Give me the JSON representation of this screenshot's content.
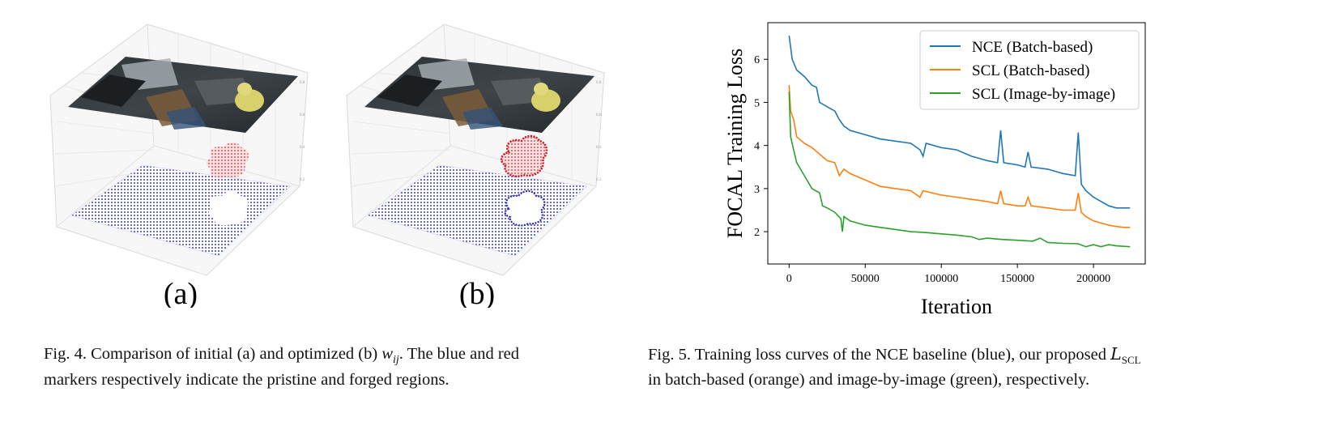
{
  "fig4": {
    "panels": [
      {
        "label": "(a)"
      },
      {
        "label": "(b)"
      }
    ],
    "caption": {
      "prefix": "Fig. 4.  Comparison of initial (a) and optimized (b) ",
      "math": "w",
      "math_sub": "ij",
      "line1_suffix": ". The blue and red",
      "line2": "markers respectively indicate the pristine and forged regions."
    },
    "colors": {
      "pristine": "#3b3bd6",
      "forged": "#e0303a"
    }
  },
  "chart_data": {
    "type": "line",
    "title": "",
    "xlabel": "Iteration",
    "ylabel": "FOCAL Training Loss",
    "xlim": [
      -14000,
      234000
    ],
    "ylim": [
      1.25,
      6.85
    ],
    "xticks": [
      0,
      50000,
      100000,
      150000,
      200000
    ],
    "xtick_labels": [
      "0",
      "50000",
      "100000",
      "150000",
      "200000"
    ],
    "yticks": [
      2,
      3,
      4,
      5,
      6
    ],
    "ytick_labels": [
      "2",
      "3",
      "4",
      "5",
      "6"
    ],
    "grid": false,
    "legend_position": "top-right",
    "series": [
      {
        "name": "NCE (Batch-based)",
        "color": "#1f77b4",
        "points": [
          [
            0,
            6.55
          ],
          [
            2000,
            6.0
          ],
          [
            5000,
            5.75
          ],
          [
            10000,
            5.6
          ],
          [
            15000,
            5.4
          ],
          [
            18000,
            5.35
          ],
          [
            20000,
            5.0
          ],
          [
            25000,
            4.9
          ],
          [
            30000,
            4.8
          ],
          [
            33000,
            4.6
          ],
          [
            36000,
            4.45
          ],
          [
            40000,
            4.35
          ],
          [
            50000,
            4.25
          ],
          [
            60000,
            4.15
          ],
          [
            70000,
            4.1
          ],
          [
            80000,
            4.05
          ],
          [
            86000,
            3.9
          ],
          [
            88000,
            3.75
          ],
          [
            90000,
            4.05
          ],
          [
            100000,
            3.95
          ],
          [
            110000,
            3.9
          ],
          [
            120000,
            3.75
          ],
          [
            125000,
            3.7
          ],
          [
            130000,
            3.65
          ],
          [
            137000,
            3.6
          ],
          [
            139000,
            4.35
          ],
          [
            141000,
            3.6
          ],
          [
            150000,
            3.55
          ],
          [
            155000,
            3.5
          ],
          [
            157000,
            3.85
          ],
          [
            159000,
            3.5
          ],
          [
            170000,
            3.45
          ],
          [
            175000,
            3.4
          ],
          [
            180000,
            3.35
          ],
          [
            188000,
            3.3
          ],
          [
            190000,
            4.3
          ],
          [
            192000,
            3.1
          ],
          [
            195000,
            2.95
          ],
          [
            200000,
            2.8
          ],
          [
            205000,
            2.7
          ],
          [
            210000,
            2.6
          ],
          [
            215000,
            2.55
          ],
          [
            220000,
            2.55
          ],
          [
            224000,
            2.55
          ]
        ]
      },
      {
        "name": "SCL (Batch-based)",
        "color": "#ff7f0e",
        "points": [
          [
            0,
            5.4
          ],
          [
            1000,
            4.8
          ],
          [
            3000,
            4.6
          ],
          [
            5000,
            4.2
          ],
          [
            10000,
            4.05
          ],
          [
            15000,
            3.95
          ],
          [
            20000,
            3.8
          ],
          [
            25000,
            3.65
          ],
          [
            30000,
            3.6
          ],
          [
            33000,
            3.3
          ],
          [
            36000,
            3.45
          ],
          [
            40000,
            3.35
          ],
          [
            50000,
            3.2
          ],
          [
            60000,
            3.05
          ],
          [
            70000,
            3.0
          ],
          [
            80000,
            2.95
          ],
          [
            86000,
            2.8
          ],
          [
            88000,
            2.95
          ],
          [
            100000,
            2.85
          ],
          [
            110000,
            2.8
          ],
          [
            120000,
            2.75
          ],
          [
            130000,
            2.7
          ],
          [
            137000,
            2.65
          ],
          [
            139000,
            2.95
          ],
          [
            141000,
            2.65
          ],
          [
            150000,
            2.6
          ],
          [
            155000,
            2.6
          ],
          [
            157000,
            2.8
          ],
          [
            159000,
            2.6
          ],
          [
            170000,
            2.55
          ],
          [
            180000,
            2.5
          ],
          [
            188000,
            2.5
          ],
          [
            190000,
            2.9
          ],
          [
            192000,
            2.45
          ],
          [
            195000,
            2.35
          ],
          [
            200000,
            2.25
          ],
          [
            205000,
            2.2
          ],
          [
            210000,
            2.15
          ],
          [
            215000,
            2.12
          ],
          [
            220000,
            2.1
          ],
          [
            224000,
            2.1
          ]
        ]
      },
      {
        "name": "SCL (Image-by-image)",
        "color": "#2ca02c",
        "points": [
          [
            0,
            5.25
          ],
          [
            1000,
            4.2
          ],
          [
            3000,
            3.9
          ],
          [
            5000,
            3.6
          ],
          [
            10000,
            3.3
          ],
          [
            15000,
            3.0
          ],
          [
            20000,
            2.9
          ],
          [
            22000,
            2.6
          ],
          [
            25000,
            2.55
          ],
          [
            30000,
            2.45
          ],
          [
            34000,
            2.3
          ],
          [
            35000,
            2.0
          ],
          [
            36000,
            2.35
          ],
          [
            40000,
            2.25
          ],
          [
            50000,
            2.15
          ],
          [
            60000,
            2.1
          ],
          [
            70000,
            2.05
          ],
          [
            80000,
            2.0
          ],
          [
            90000,
            1.98
          ],
          [
            100000,
            1.95
          ],
          [
            110000,
            1.92
          ],
          [
            120000,
            1.88
          ],
          [
            125000,
            1.82
          ],
          [
            130000,
            1.85
          ],
          [
            140000,
            1.82
          ],
          [
            150000,
            1.8
          ],
          [
            160000,
            1.78
          ],
          [
            165000,
            1.85
          ],
          [
            170000,
            1.75
          ],
          [
            180000,
            1.73
          ],
          [
            190000,
            1.72
          ],
          [
            195000,
            1.65
          ],
          [
            200000,
            1.7
          ],
          [
            205000,
            1.65
          ],
          [
            210000,
            1.7
          ],
          [
            215000,
            1.67
          ],
          [
            224000,
            1.65
          ]
        ]
      }
    ]
  },
  "fig5": {
    "caption": {
      "line1_prefix": "Fig. 5.  Training loss curves of the NCE baseline (blue), our proposed ",
      "math": "L",
      "math_sub": "SCL",
      "line2": "in batch-based (orange) and image-by-image (green), respectively."
    }
  }
}
